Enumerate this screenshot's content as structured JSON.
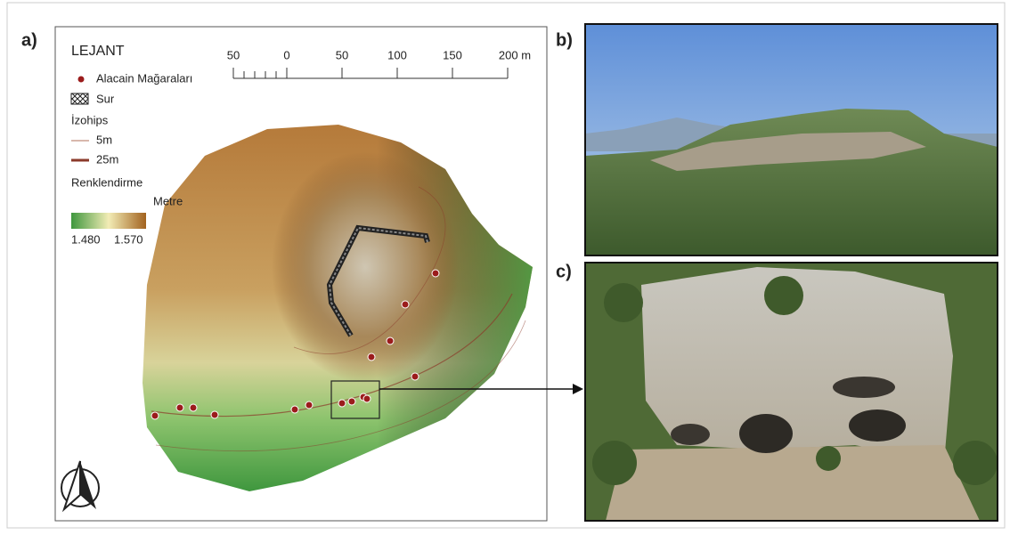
{
  "panels": {
    "a": "a)",
    "b": "b)",
    "c": "c)"
  },
  "legend": {
    "title": "LEJANT",
    "caves": "Alacain Mağaraları",
    "wall": "Sur",
    "contours": "İzohips",
    "contour_minor": "5m",
    "contour_major": "25m",
    "coloring": "Renklendirme",
    "unit": "Metre",
    "min": "1.480",
    "max": "1.570"
  },
  "scale_bar": {
    "labels": [
      "50",
      "0",
      "50",
      "100",
      "150",
      "200 m"
    ]
  }
}
